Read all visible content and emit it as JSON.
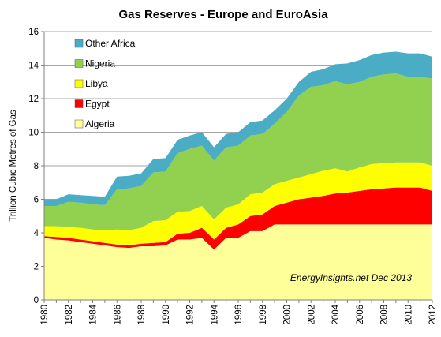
{
  "chart_data": {
    "type": "area",
    "stacked": true,
    "title": "Gas Reserves - Europe and EuroAsia",
    "xlabel": "",
    "ylabel": "Trillion Cubic Metres of Gas",
    "ylim": [
      0,
      16
    ],
    "yticks": [
      "0",
      "2",
      "4",
      "6",
      "8",
      "10",
      "12",
      "14",
      "16"
    ],
    "x": [
      1980,
      1981,
      1982,
      1983,
      1984,
      1985,
      1986,
      1987,
      1988,
      1989,
      1990,
      1991,
      1992,
      1993,
      1994,
      1995,
      1996,
      1997,
      1998,
      1999,
      2000,
      2001,
      2002,
      2003,
      2004,
      2005,
      2006,
      2007,
      2008,
      2009,
      2010,
      2011,
      2012
    ],
    "xticks": [
      "1980",
      "1982",
      "1984",
      "1986",
      "1988",
      "1990",
      "1992",
      "1994",
      "1996",
      "1998",
      "2000",
      "2002",
      "2004",
      "2006",
      "2008",
      "2010",
      "2012"
    ],
    "grid": "horizontal",
    "legend_position": "top-left",
    "annotation": "EnergyInsights.net  Dec 2013",
    "series": [
      {
        "name": "Algeria",
        "color": "#ffff99",
        "values": [
          3.7,
          3.6,
          3.55,
          3.45,
          3.35,
          3.25,
          3.15,
          3.1,
          3.2,
          3.2,
          3.25,
          3.6,
          3.6,
          3.7,
          3.0,
          3.7,
          3.7,
          4.1,
          4.1,
          4.5,
          4.5,
          4.5,
          4.5,
          4.5,
          4.5,
          4.5,
          4.5,
          4.5,
          4.5,
          4.5,
          4.5,
          4.5,
          4.5
        ]
      },
      {
        "name": "Egypt",
        "color": "#ff0000",
        "values": [
          0.1,
          0.15,
          0.15,
          0.15,
          0.15,
          0.15,
          0.15,
          0.15,
          0.15,
          0.2,
          0.2,
          0.35,
          0.4,
          0.6,
          0.6,
          0.6,
          0.8,
          0.9,
          1.0,
          1.1,
          1.3,
          1.5,
          1.6,
          1.7,
          1.85,
          1.9,
          2.0,
          2.1,
          2.15,
          2.2,
          2.2,
          2.2,
          2.0
        ]
      },
      {
        "name": "Libya",
        "color": "#ffff00",
        "values": [
          0.6,
          0.65,
          0.65,
          0.7,
          0.7,
          0.75,
          0.9,
          0.9,
          0.95,
          1.3,
          1.3,
          1.3,
          1.3,
          1.3,
          1.2,
          1.2,
          1.2,
          1.3,
          1.3,
          1.3,
          1.3,
          1.3,
          1.4,
          1.5,
          1.5,
          1.25,
          1.4,
          1.5,
          1.5,
          1.5,
          1.5,
          1.5,
          1.5
        ]
      },
      {
        "name": "Nigeria",
        "color": "#92d050",
        "values": [
          1.2,
          1.2,
          1.5,
          1.5,
          1.5,
          1.5,
          2.4,
          2.5,
          2.5,
          2.9,
          2.9,
          3.5,
          3.7,
          3.6,
          3.5,
          3.6,
          3.5,
          3.5,
          3.5,
          3.6,
          4.1,
          4.9,
          5.2,
          5.1,
          5.2,
          5.2,
          5.1,
          5.2,
          5.3,
          5.3,
          5.1,
          5.1,
          5.2
        ]
      },
      {
        "name": "Other Africa",
        "color": "#4bacc6",
        "values": [
          0.4,
          0.4,
          0.45,
          0.45,
          0.5,
          0.5,
          0.75,
          0.75,
          0.75,
          0.8,
          0.8,
          0.8,
          0.8,
          0.8,
          0.8,
          0.8,
          0.8,
          0.8,
          0.8,
          0.8,
          0.8,
          0.8,
          0.9,
          0.95,
          1.0,
          1.25,
          1.3,
          1.3,
          1.3,
          1.3,
          1.4,
          1.4,
          1.3
        ]
      }
    ]
  }
}
